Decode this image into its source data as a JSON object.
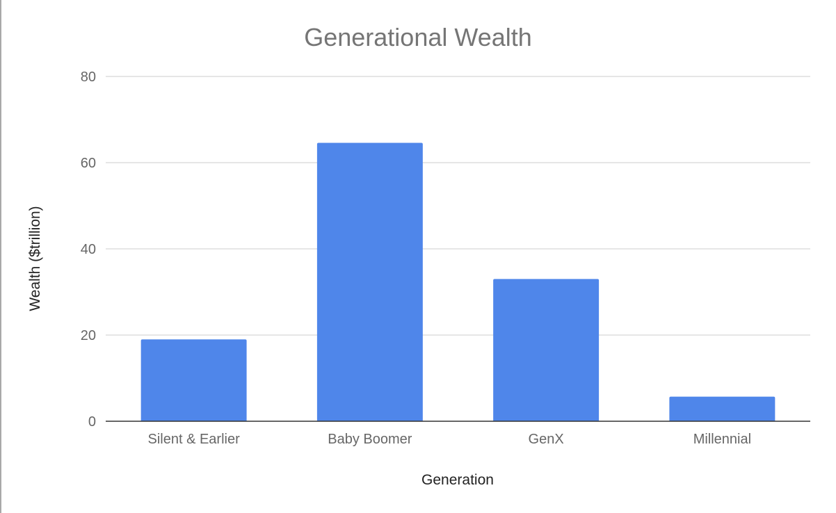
{
  "chart_data": {
    "type": "bar",
    "title": "Generational Wealth",
    "xlabel": "Generation",
    "ylabel": "Wealth ($trillion)",
    "categories": [
      "Silent & Earlier",
      "Baby Boomer",
      "GenX",
      "Millennial"
    ],
    "values": [
      19,
      64.6,
      33,
      5.7
    ],
    "ylim": [
      0,
      80
    ],
    "yticks": [
      "0",
      "20",
      "40",
      "60",
      "80"
    ],
    "grid": true,
    "legend": "none",
    "bar_color": "#4f86ea"
  }
}
